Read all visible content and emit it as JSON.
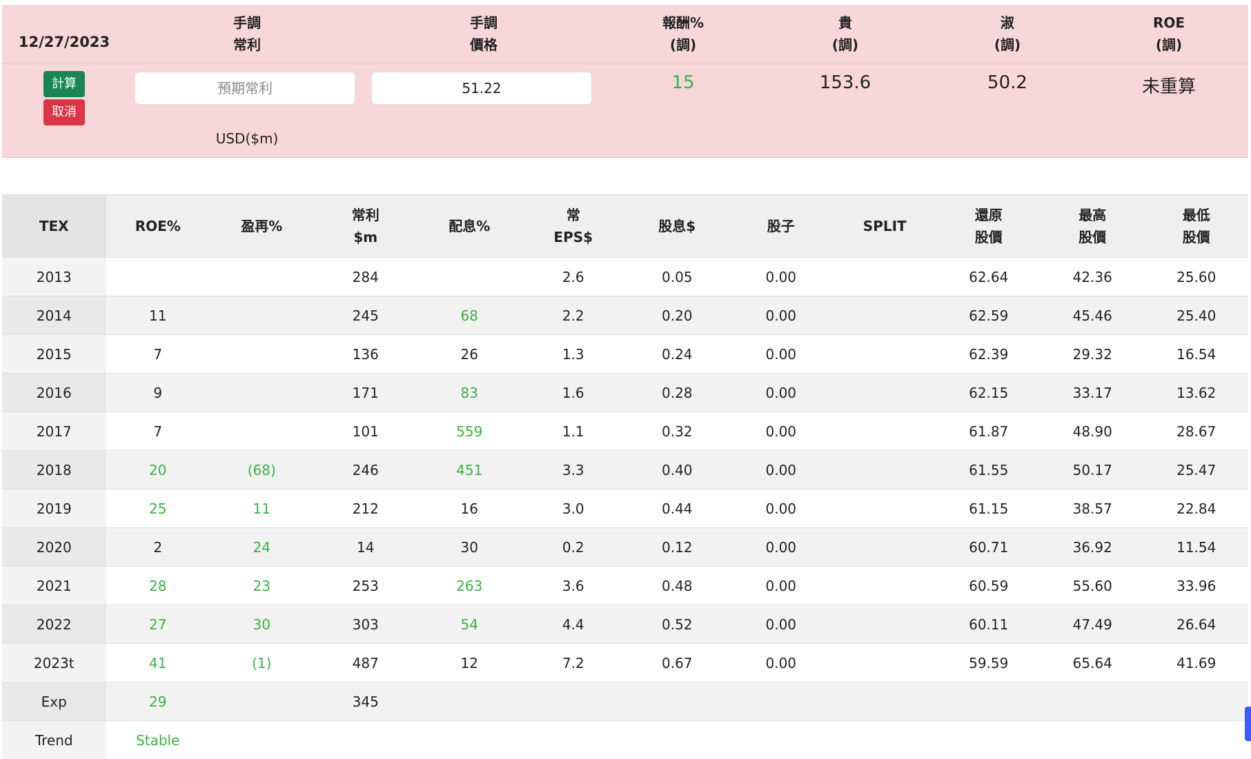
{
  "panel": {
    "date": "12/27/2023",
    "headers": [
      [
        "手調",
        "常利"
      ],
      [
        "手調",
        "價格"
      ],
      [
        "報酬%",
        "(調)"
      ],
      [
        "貴",
        "(調)"
      ],
      [
        "淑",
        "(調)"
      ],
      [
        "ROE",
        "(調)"
      ]
    ],
    "buttons": {
      "calculate": "計算",
      "cancel": "取消"
    },
    "inputs": {
      "profit_placeholder": "預期常利",
      "price_value": "51.22"
    },
    "unit": "USD($m)",
    "results": [
      {
        "text": "15",
        "color": "#3cb043"
      },
      {
        "text": "153.6"
      },
      {
        "text": "50.2"
      },
      {
        "text": "未重算"
      }
    ]
  },
  "table": {
    "headers": [
      [
        "TEX"
      ],
      [
        "ROE%"
      ],
      [
        "盈再%"
      ],
      [
        "常利",
        "$m"
      ],
      [
        "配息%"
      ],
      [
        "常",
        "EPS$"
      ],
      [
        "股息$"
      ],
      [
        "股子"
      ],
      [
        "SPLIT"
      ],
      [
        "還原",
        "股價"
      ],
      [
        "最高",
        "股價"
      ],
      [
        "最低",
        "股價"
      ]
    ],
    "rows": [
      [
        {
          "text": "2013"
        },
        null,
        null,
        {
          "text": "284"
        },
        null,
        {
          "text": "2.6"
        },
        {
          "text": "0.05"
        },
        {
          "text": "0.00"
        },
        null,
        {
          "text": "62.64"
        },
        {
          "text": "42.36"
        },
        {
          "text": "25.60"
        }
      ],
      [
        {
          "text": "2014"
        },
        {
          "text": "11"
        },
        null,
        {
          "text": "245"
        },
        {
          "text": "68",
          "color": "#3cb043"
        },
        {
          "text": "2.2"
        },
        {
          "text": "0.20"
        },
        {
          "text": "0.00"
        },
        null,
        {
          "text": "62.59"
        },
        {
          "text": "45.46"
        },
        {
          "text": "25.40"
        }
      ],
      [
        {
          "text": "2015"
        },
        {
          "text": "7"
        },
        null,
        {
          "text": "136"
        },
        {
          "text": "26"
        },
        {
          "text": "1.3"
        },
        {
          "text": "0.24"
        },
        {
          "text": "0.00"
        },
        null,
        {
          "text": "62.39"
        },
        {
          "text": "29.32"
        },
        {
          "text": "16.54"
        }
      ],
      [
        {
          "text": "2016"
        },
        {
          "text": "9"
        },
        null,
        {
          "text": "171"
        },
        {
          "text": "83",
          "color": "#3cb043"
        },
        {
          "text": "1.6"
        },
        {
          "text": "0.28"
        },
        {
          "text": "0.00"
        },
        null,
        {
          "text": "62.15"
        },
        {
          "text": "33.17"
        },
        {
          "text": "13.62"
        }
      ],
      [
        {
          "text": "2017"
        },
        {
          "text": "7"
        },
        null,
        {
          "text": "101"
        },
        {
          "text": "559",
          "color": "#3cb043"
        },
        {
          "text": "1.1"
        },
        {
          "text": "0.32"
        },
        {
          "text": "0.00"
        },
        null,
        {
          "text": "61.87"
        },
        {
          "text": "48.90"
        },
        {
          "text": "28.67"
        }
      ],
      [
        {
          "text": "2018"
        },
        {
          "text": "20",
          "color": "#3cb043"
        },
        {
          "text": "(68)",
          "color": "#3cb043"
        },
        {
          "text": "246"
        },
        {
          "text": "451",
          "color": "#3cb043"
        },
        {
          "text": "3.3"
        },
        {
          "text": "0.40"
        },
        {
          "text": "0.00"
        },
        null,
        {
          "text": "61.55"
        },
        {
          "text": "50.17"
        },
        {
          "text": "25.47"
        }
      ],
      [
        {
          "text": "2019"
        },
        {
          "text": "25",
          "color": "#3cb043"
        },
        {
          "text": "11",
          "color": "#3cb043"
        },
        {
          "text": "212"
        },
        {
          "text": "16"
        },
        {
          "text": "3.0"
        },
        {
          "text": "0.44"
        },
        {
          "text": "0.00"
        },
        null,
        {
          "text": "61.15"
        },
        {
          "text": "38.57"
        },
        {
          "text": "22.84"
        }
      ],
      [
        {
          "text": "2020"
        },
        {
          "text": "2"
        },
        {
          "text": "24",
          "color": "#3cb043"
        },
        {
          "text": "14"
        },
        {
          "text": "30"
        },
        {
          "text": "0.2"
        },
        {
          "text": "0.12"
        },
        {
          "text": "0.00"
        },
        null,
        {
          "text": "60.71"
        },
        {
          "text": "36.92"
        },
        {
          "text": "11.54"
        }
      ],
      [
        {
          "text": "2021"
        },
        {
          "text": "28",
          "color": "#3cb043"
        },
        {
          "text": "23",
          "color": "#3cb043"
        },
        {
          "text": "253"
        },
        {
          "text": "263",
          "color": "#3cb043"
        },
        {
          "text": "3.6"
        },
        {
          "text": "0.48"
        },
        {
          "text": "0.00"
        },
        null,
        {
          "text": "60.59"
        },
        {
          "text": "55.60"
        },
        {
          "text": "33.96"
        }
      ],
      [
        {
          "text": "2022"
        },
        {
          "text": "27",
          "color": "#3cb043"
        },
        {
          "text": "30",
          "color": "#3cb043"
        },
        {
          "text": "303"
        },
        {
          "text": "54",
          "color": "#3cb043"
        },
        {
          "text": "4.4"
        },
        {
          "text": "0.52"
        },
        {
          "text": "0.00"
        },
        null,
        {
          "text": "60.11"
        },
        {
          "text": "47.49"
        },
        {
          "text": "26.64"
        }
      ],
      [
        {
          "text": "2023t"
        },
        {
          "text": "41",
          "color": "#3cb043"
        },
        {
          "text": "(1)",
          "color": "#3cb043"
        },
        {
          "text": "487"
        },
        {
          "text": "12"
        },
        {
          "text": "7.2"
        },
        {
          "text": "0.67"
        },
        {
          "text": "0.00"
        },
        null,
        {
          "text": "59.59"
        },
        {
          "text": "65.64"
        },
        {
          "text": "41.69"
        }
      ],
      [
        {
          "text": "Exp"
        },
        {
          "text": "29",
          "color": "#3cb043"
        },
        null,
        {
          "text": "345"
        },
        null,
        null,
        null,
        null,
        null,
        null,
        null,
        null
      ],
      [
        {
          "text": "Trend"
        },
        {
          "text": "Stable",
          "color": "#3cb043"
        },
        null,
        null,
        null,
        null,
        null,
        null,
        null,
        null,
        null,
        null
      ]
    ]
  }
}
